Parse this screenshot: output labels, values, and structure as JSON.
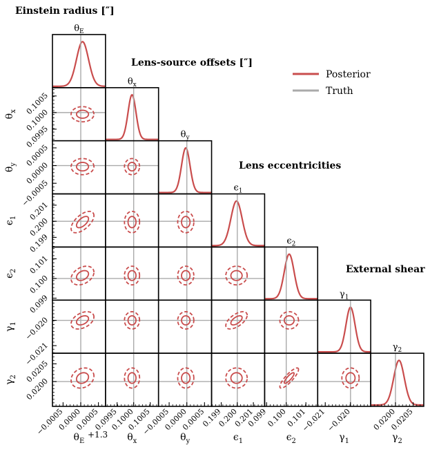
{
  "chart_data": {
    "type": "corner-plot",
    "group_titles": [
      "Einstein radius [″]",
      "Lens-source offsets [″]",
      "Lens eccentricities",
      "External shear"
    ],
    "legend": [
      {
        "label": "Posterior",
        "color": "#c94c4c"
      },
      {
        "label": "Truth",
        "color": "#aaaaaa"
      }
    ],
    "axis_offset_label": "+1.3",
    "params": [
      {
        "name": "θE",
        "sub": "E",
        "sym": "θ",
        "truth": 0.0,
        "mean": 5e-05,
        "sd": 0.00017,
        "range": [
          -0.0008,
          0.0007
        ],
        "ticks": [
          -0.0005,
          0,
          0.0005
        ],
        "tick_labels": [
          "−0.0005",
          "0.0000",
          "0.0005"
        ]
      },
      {
        "name": "θx",
        "sub": "x",
        "sym": "θ",
        "truth": 0.1,
        "mean": 0.09995,
        "sd": 0.00012,
        "range": [
          0.09915,
          0.10075
        ],
        "ticks": [
          0.0995,
          0.1,
          0.1005
        ],
        "tick_labels": [
          "0.0995",
          "0.1000",
          "0.1005"
        ]
      },
      {
        "name": "θy",
        "sub": "y",
        "sym": "θ",
        "truth": 0.0,
        "mean": -3e-05,
        "sd": 0.00012,
        "range": [
          -0.0008,
          0.0007
        ],
        "ticks": [
          -0.0005,
          0,
          0.0005
        ],
        "tick_labels": [
          "−0.0005",
          "0.0000",
          "0.0005"
        ]
      },
      {
        "name": "ε1",
        "sub": "1",
        "sym": "ϵ",
        "truth": 0.2,
        "mean": 0.19995,
        "sd": 0.00035,
        "range": [
          0.1984,
          0.2017
        ],
        "ticks": [
          0.199,
          0.2,
          0.201
        ],
        "tick_labels": [
          "0.199",
          "0.200",
          "0.201"
        ]
      },
      {
        "name": "ε2",
        "sub": "2",
        "sym": "ϵ",
        "truth": 0.1,
        "mean": 0.10015,
        "sd": 0.00025,
        "range": [
          0.0989,
          0.1016
        ],
        "ticks": [
          0.099,
          0.1,
          0.101
        ],
        "tick_labels": [
          "0.099",
          "0.100",
          "0.101"
        ]
      },
      {
        "name": "γ1",
        "sub": "1",
        "sym": "γ",
        "truth": -0.02,
        "mean": -0.02,
        "sd": 0.00018,
        "range": [
          -0.0213,
          -0.0192
        ],
        "ticks": [
          -0.021,
          -0.02
        ],
        "tick_labels": [
          "−0.021",
          "−0.020"
        ]
      },
      {
        "name": "γ2",
        "sub": "2",
        "sym": "γ",
        "truth": 0.02,
        "mean": 0.0201,
        "sd": 0.00015,
        "range": [
          0.0193,
          0.0208
        ],
        "ticks": [
          0.02,
          0.0205
        ],
        "tick_labels": [
          "0.0200",
          "0.0205"
        ]
      }
    ],
    "correlations": {
      "0-3": 0.6,
      "0-4": 0.35,
      "0-5": 0.4,
      "0-6": 0.2,
      "3-5": 0.6,
      "4-6": 0.85
    },
    "contour_levels": [
      "1σ solid",
      "2σ dashed"
    ]
  }
}
